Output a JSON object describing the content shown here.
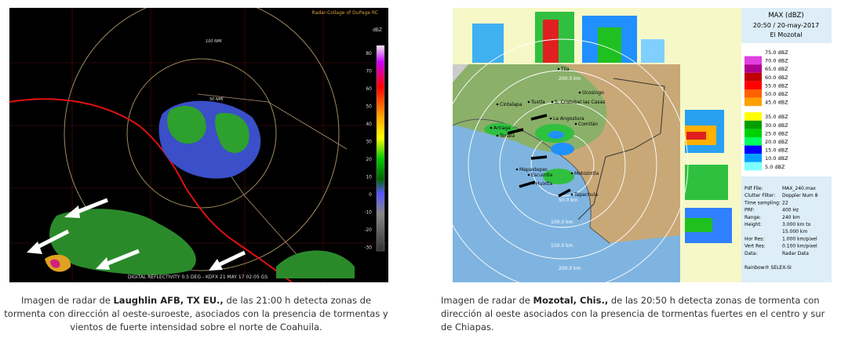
{
  "left_image": {
    "credit": "Radar-Collage of DuPage RC",
    "range_labels": [
      "100 NMI",
      "50 NMI"
    ],
    "scale_unit": "dBZ",
    "scale_ticks": [
      "80",
      "70",
      "60",
      "50",
      "40",
      "30",
      "20",
      "10",
      "0",
      "-10",
      "-20",
      "-30"
    ],
    "footer": "DIGITAL REFLECTIVITY 0.5 DEG - KDFX 21 MAY 17 02:05 GS"
  },
  "left_caption": {
    "before": "Imagen de radar de ",
    "bold": "Laughlin AFB, TX EU.,",
    "after": " de las 21:00 h detecta zonas de tormenta con dirección al oeste-suroeste, asociados con la presencia de tormentas y vientos de fuerte intensidad sobre el norte de Coahuila."
  },
  "right_image": {
    "title": "MAX (dBZ)",
    "datetime": "20:50 / 20-may-2017",
    "station": "El Mozotal",
    "legend": [
      {
        "label": "75.0 dBZ",
        "color": "#ffffff"
      },
      {
        "label": "70.0 dBZ",
        "color": "#e040e0"
      },
      {
        "label": "65.0 dBZ",
        "color": "#b00090"
      },
      {
        "label": "60.0 dBZ",
        "color": "#c00000"
      },
      {
        "label": "55.0 dBZ",
        "color": "#ff0000"
      },
      {
        "label": "50.0 dBZ",
        "color": "#ff6000"
      },
      {
        "label": "45.0 dBZ",
        "color": "#ffa000"
      },
      {
        "label": "35.0 dBZ",
        "color": "#ffff00"
      },
      {
        "label": "30.0 dBZ",
        "color": "#00a000"
      },
      {
        "label": "25.0 dBZ",
        "color": "#00d000"
      },
      {
        "label": "20.0 dBZ",
        "color": "#00ff60"
      },
      {
        "label": "15.0 dBZ",
        "color": "#0000ff"
      },
      {
        "label": "10.0 dBZ",
        "color": "#00a0ff"
      },
      {
        "label": "5.0 dBZ",
        "color": "#80ffff"
      }
    ],
    "info": [
      [
        "Pdf File:",
        "MAX_240.max"
      ],
      [
        "Clutter Filter:",
        "Doppler Num 8"
      ],
      [
        "Time sampling:",
        "22"
      ],
      [
        "PRF:",
        "400 Hz"
      ],
      [
        "Range:",
        "240 km"
      ],
      [
        "Height:",
        "3.000 km to"
      ],
      [
        "",
        "15.000 km"
      ],
      [
        "Hor Res:",
        "1.000 km/pixel"
      ],
      [
        "Vert Res:",
        "0.100 km/pixel"
      ],
      [
        "Data:",
        "Radar Data"
      ]
    ],
    "software": "Rainbow® SELEX-SI",
    "places": [
      "Tila",
      "Ocosingo",
      "Cintalapa",
      "Tuxtla",
      "S. Cristobal las Casas",
      "La Angostura",
      "Comitán",
      "Arriaga",
      "Tonalá",
      "Mapastepec",
      "Escuintla",
      "Motozintla",
      "Huixtla",
      "Tapachula"
    ],
    "range_labels": [
      "200.0 km",
      "50.0 km",
      "100.0 km",
      "150.0 km",
      "200.0 km"
    ]
  },
  "right_caption": {
    "before": "Imagen de radar de ",
    "bold": "Mozotal, Chis.,",
    "after": " de las 20:50 h detecta zonas de tormenta con dirección al oeste asociados con la presencia de tormentas fuertes en el centro y sur de Chiapas."
  }
}
